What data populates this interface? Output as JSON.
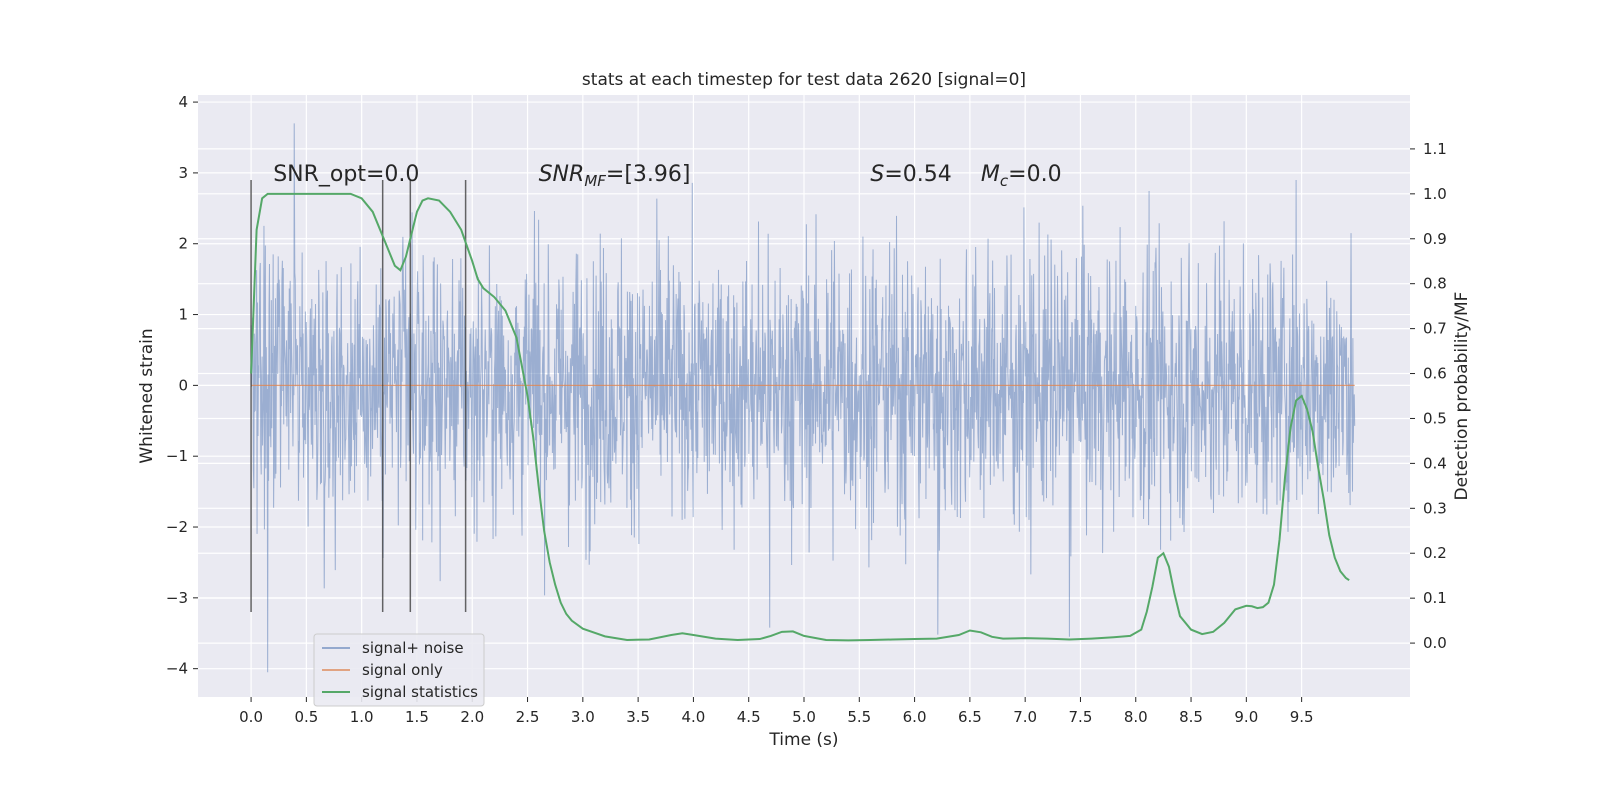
{
  "chart_data": {
    "type": "line",
    "title": "stats at each timestep for test data 2620 [signal=0]",
    "xlabel": "Time (s)",
    "ylabel_left": "Whitened strain",
    "ylabel_right": "Detection probability/MF",
    "x_range": [
      -0.48,
      10.48
    ],
    "y_left_range": [
      -4.4,
      4.1
    ],
    "y_right_range": [
      -0.12,
      1.22
    ],
    "x_ticks": [
      0.0,
      0.5,
      1.0,
      1.5,
      2.0,
      2.5,
      3.0,
      3.5,
      4.0,
      4.5,
      5.0,
      5.5,
      6.0,
      6.5,
      7.0,
      7.5,
      8.0,
      8.5,
      9.0,
      9.5
    ],
    "y_left_ticks": [
      -4,
      -3,
      -2,
      -1,
      0,
      1,
      2,
      3,
      4
    ],
    "y_right_ticks": [
      0.0,
      0.1,
      0.2,
      0.3,
      0.4,
      0.5,
      0.6,
      0.7,
      0.8,
      0.9,
      1.0,
      1.1
    ],
    "grid": true,
    "legend_position": "lower-left",
    "annotations": [
      {
        "text": "SNR_opt=0.0",
        "x": 0.2,
        "y": 3.0
      },
      {
        "text": "SNR_MF=[3.96]",
        "x": 2.6,
        "y": 3.0
      },
      {
        "text": "S=0.54",
        "x": 5.6,
        "y": 3.0
      },
      {
        "text": "M_c=0.0",
        "x": 6.6,
        "y": 3.0
      }
    ],
    "vertical_lines_x": [
      0.0,
      1.19,
      1.44,
      1.94
    ],
    "vertical_lines_y_range": [
      -3.2,
      2.9
    ],
    "series": [
      {
        "name": "signal+ noise",
        "axis": "left",
        "color": "#4c72b0",
        "description_kind": "noise",
        "x_range": [
          0.0,
          9.98
        ],
        "typical_amplitude": 1.0,
        "extremes": [
          {
            "x": 0.39,
            "y": 3.7
          },
          {
            "x": 0.15,
            "y": -4.05
          },
          {
            "x": 4.69,
            "y": -3.42
          },
          {
            "x": 6.21,
            "y": -3.52
          },
          {
            "x": 7.4,
            "y": -3.55
          },
          {
            "x": 9.45,
            "y": 2.9
          },
          {
            "x": 9.96,
            "y": -1.5
          }
        ]
      },
      {
        "name": "signal only",
        "axis": "left",
        "color": "#dd8452",
        "x": [
          0.0,
          9.98
        ],
        "y": [
          0.0,
          0.0
        ]
      },
      {
        "name": "signal statistics",
        "axis": "right",
        "color": "#55a868",
        "x": [
          0.0,
          0.05,
          0.1,
          0.15,
          0.2,
          0.3,
          0.5,
          0.7,
          0.9,
          1.0,
          1.1,
          1.2,
          1.3,
          1.35,
          1.4,
          1.45,
          1.5,
          1.55,
          1.6,
          1.7,
          1.8,
          1.9,
          2.0,
          2.05,
          2.1,
          2.2,
          2.3,
          2.4,
          2.5,
          2.55,
          2.6,
          2.65,
          2.7,
          2.75,
          2.8,
          2.85,
          2.9,
          3.0,
          3.2,
          3.4,
          3.6,
          3.8,
          3.9,
          4.0,
          4.2,
          4.4,
          4.6,
          4.7,
          4.8,
          4.9,
          5.0,
          5.2,
          5.4,
          5.6,
          5.8,
          6.0,
          6.2,
          6.4,
          6.5,
          6.6,
          6.7,
          6.8,
          7.0,
          7.2,
          7.4,
          7.6,
          7.8,
          7.95,
          8.05,
          8.1,
          8.15,
          8.2,
          8.25,
          8.3,
          8.35,
          8.4,
          8.5,
          8.6,
          8.7,
          8.8,
          8.9,
          9.0,
          9.05,
          9.1,
          9.15,
          9.2,
          9.25,
          9.3,
          9.35,
          9.4,
          9.45,
          9.5,
          9.55,
          9.6,
          9.65,
          9.7,
          9.75,
          9.8,
          9.85,
          9.9,
          9.93
        ],
        "y": [
          0.6,
          0.92,
          0.99,
          1.0,
          1.0,
          1.0,
          1.0,
          1.0,
          1.0,
          0.99,
          0.96,
          0.9,
          0.84,
          0.83,
          0.86,
          0.91,
          0.96,
          0.985,
          0.99,
          0.985,
          0.96,
          0.92,
          0.85,
          0.81,
          0.79,
          0.77,
          0.74,
          0.68,
          0.55,
          0.46,
          0.35,
          0.25,
          0.18,
          0.13,
          0.09,
          0.065,
          0.05,
          0.032,
          0.015,
          0.007,
          0.008,
          0.018,
          0.022,
          0.018,
          0.01,
          0.007,
          0.009,
          0.016,
          0.025,
          0.026,
          0.016,
          0.007,
          0.006,
          0.007,
          0.008,
          0.009,
          0.01,
          0.018,
          0.028,
          0.024,
          0.014,
          0.01,
          0.011,
          0.01,
          0.008,
          0.01,
          0.013,
          0.016,
          0.03,
          0.07,
          0.125,
          0.19,
          0.2,
          0.17,
          0.11,
          0.06,
          0.03,
          0.02,
          0.025,
          0.045,
          0.075,
          0.083,
          0.082,
          0.078,
          0.08,
          0.09,
          0.13,
          0.23,
          0.37,
          0.48,
          0.54,
          0.55,
          0.52,
          0.47,
          0.39,
          0.32,
          0.24,
          0.19,
          0.16,
          0.145,
          0.14
        ]
      }
    ]
  }
}
